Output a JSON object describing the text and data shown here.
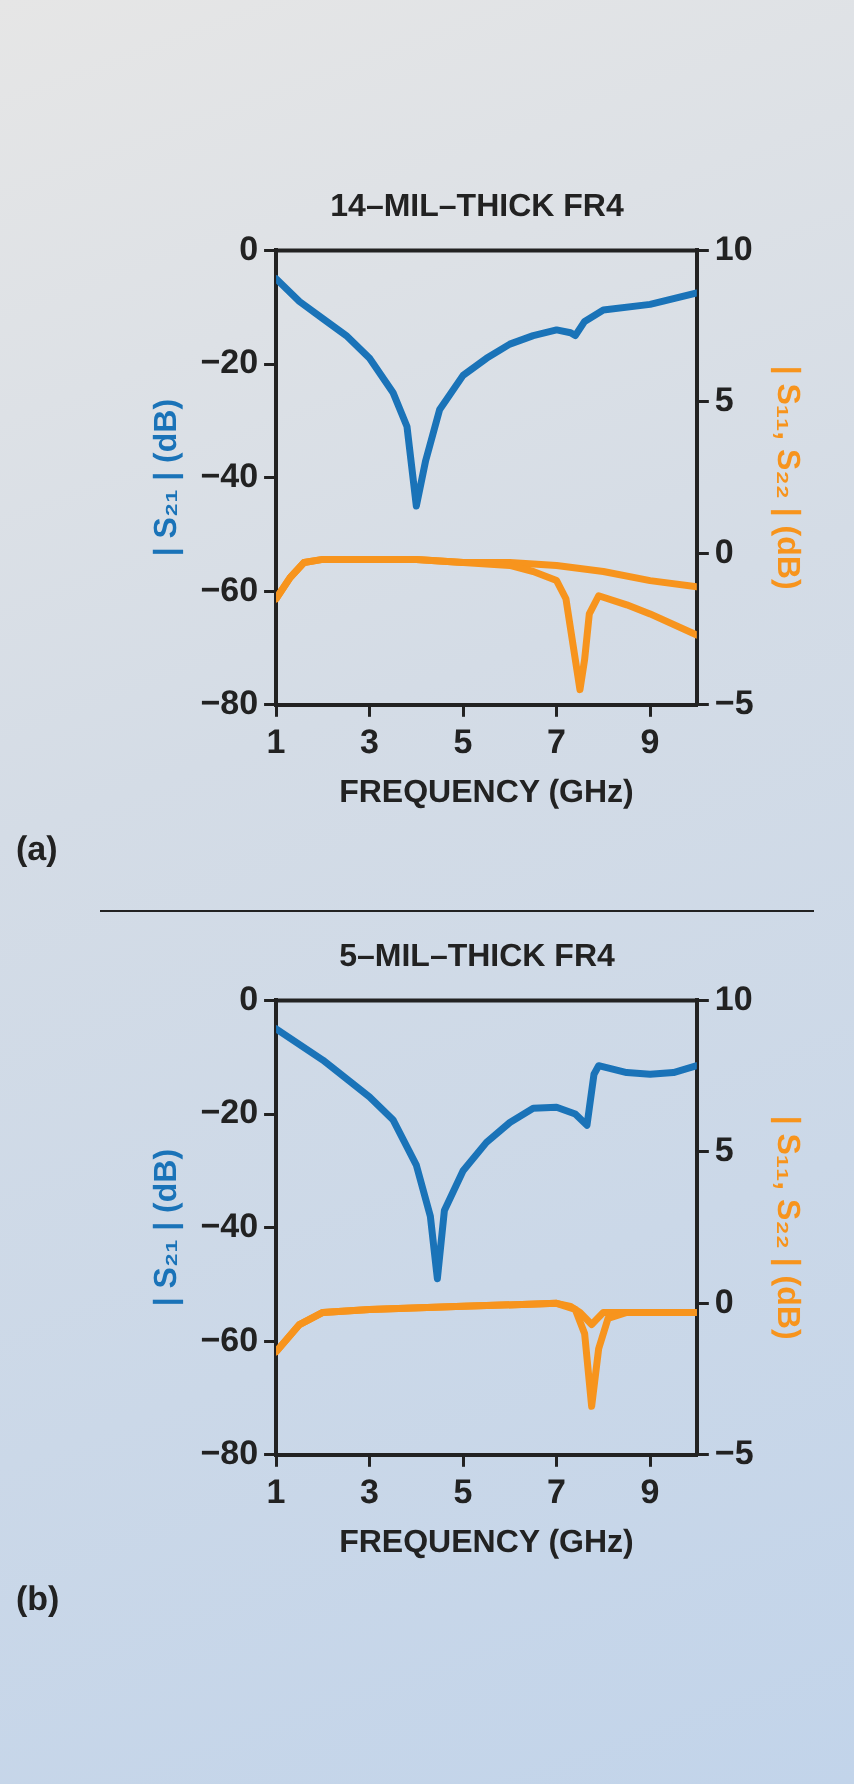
{
  "chart_data": [
    {
      "type": "line",
      "title": "14–MIL–THICK FR4",
      "xlabel": "FREQUENCY (GHz)",
      "ylabel": "| S₂₁ | (dB)",
      "y2label": "| S₁₁, S₂₂ | (dB)",
      "annotations": [
        "(a)"
      ],
      "xlim": [
        1,
        10
      ],
      "xticks": [
        1,
        3,
        5,
        7,
        9
      ],
      "ylim": [
        -80,
        0
      ],
      "yticks": [
        -80,
        -60,
        -40,
        -20,
        0
      ],
      "y2lim": [
        -5,
        10
      ],
      "y2ticks": [
        -5,
        0,
        5,
        10
      ],
      "legend": false,
      "marker": "none",
      "line_style": "solid",
      "series": [
        {
          "color": "#1a73b8",
          "x": [
            1,
            1.5,
            2,
            2.5,
            3,
            3.5,
            3.8,
            4,
            4.2,
            4.5,
            5,
            5.5,
            6,
            6.5,
            7,
            7.3,
            7.4,
            7.6,
            8,
            9,
            10
          ],
          "values": [
            -5,
            -9,
            -12,
            -15,
            -19,
            -25,
            -31,
            -45,
            -37,
            -28,
            -22,
            -19,
            -16.5,
            -15,
            -14,
            -14.5,
            -15,
            -12.5,
            -10.5,
            -9.5,
            -7.5
          ]
        },
        {
          "color": "#f7941d",
          "axis": "y2",
          "x": [
            1,
            1.3,
            1.6,
            2,
            3,
            4,
            5,
            6,
            6.5,
            7,
            7.2,
            7.35,
            7.5,
            7.6,
            7.7,
            7.9,
            8.5,
            9,
            10
          ],
          "values": [
            -1.5,
            -0.8,
            -0.3,
            -0.2,
            -0.2,
            -0.2,
            -0.3,
            -0.4,
            -0.6,
            -0.9,
            -1.5,
            -3,
            -4.5,
            -3.5,
            -2,
            -1.4,
            -1.7,
            -2,
            -2.7
          ]
        },
        {
          "color": "#f7941d",
          "axis": "y2",
          "x": [
            1,
            1.3,
            1.6,
            2,
            3,
            4,
            5,
            6,
            7,
            8,
            9,
            10
          ],
          "values": [
            -1.5,
            -0.8,
            -0.3,
            -0.2,
            -0.2,
            -0.2,
            -0.3,
            -0.3,
            -0.4,
            -0.6,
            -0.9,
            -1.1
          ]
        }
      ]
    },
    {
      "type": "line",
      "title": "5–MIL–THICK FR4",
      "xlabel": "FREQUENCY (GHz)",
      "ylabel": "| S₂₁ | (dB)",
      "y2label": "| S₁₁, S₂₂ | (dB)",
      "annotations": [
        "(b)"
      ],
      "xlim": [
        1,
        10
      ],
      "xticks": [
        1,
        3,
        5,
        7,
        9
      ],
      "ylim": [
        -80,
        0
      ],
      "yticks": [
        -80,
        -60,
        -40,
        -20,
        0
      ],
      "y2lim": [
        -5,
        10
      ],
      "y2ticks": [
        -5,
        0,
        5,
        10
      ],
      "legend": false,
      "marker": "none",
      "line_style": "solid",
      "series": [
        {
          "color": "#1a73b8",
          "x": [
            1,
            2,
            3,
            3.5,
            4,
            4.3,
            4.45,
            4.6,
            5,
            5.5,
            6,
            6.5,
            7,
            7.4,
            7.65,
            7.7,
            7.8,
            7.9,
            8.5,
            9,
            9.5,
            10
          ],
          "values": [
            -5,
            -10.5,
            -17,
            -21,
            -29,
            -38,
            -49,
            -37,
            -30,
            -25,
            -21.5,
            -19,
            -18.8,
            -20,
            -22,
            -19,
            -13,
            -11.5,
            -12.7,
            -13,
            -12.7,
            -11.5
          ]
        },
        {
          "color": "#f7941d",
          "axis": "y2",
          "x": [
            1,
            1.5,
            2,
            3,
            5,
            7,
            7.4,
            7.6,
            7.75,
            7.9,
            8.1,
            8.5,
            10
          ],
          "values": [
            -1.6,
            -0.7,
            -0.3,
            -0.2,
            -0.1,
            0,
            -0.2,
            -1,
            -3.4,
            -1.5,
            -0.5,
            -0.3,
            -0.3
          ]
        },
        {
          "color": "#f7941d",
          "axis": "y2",
          "x": [
            1,
            1.5,
            2,
            3,
            5,
            7,
            7.3,
            7.5,
            7.75,
            8,
            8.5,
            10
          ],
          "values": [
            -1.6,
            -0.7,
            -0.3,
            -0.2,
            -0.1,
            0,
            -0.1,
            -0.3,
            -0.7,
            -0.3,
            -0.3,
            -0.3
          ]
        }
      ]
    }
  ]
}
